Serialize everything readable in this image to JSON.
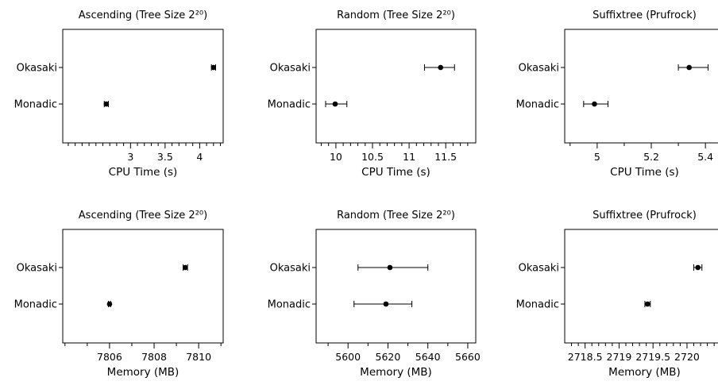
{
  "chart_data": [
    {
      "type": "scatter",
      "title": "Ascending (Tree Size 2²⁰)",
      "xlabel": "CPU Time (s)",
      "categories": [
        "Okasaki",
        "Monadic"
      ],
      "xlim": [
        2.02,
        4.34
      ],
      "major_ticks": [
        3,
        3.5,
        4
      ],
      "major_tick_labels": [
        "3",
        "3.5",
        "4"
      ],
      "minor_ticks": [
        2.1,
        2.2,
        2.3,
        2.4,
        2.5,
        2.6,
        2.7,
        2.8,
        2.9,
        3.1,
        3.2,
        3.3,
        3.4,
        3.6,
        3.7,
        3.8,
        3.9,
        4.1,
        4.2,
        4.3
      ],
      "points": [
        {
          "category": "Okasaki",
          "x": 4.2,
          "err_low": 4.17,
          "err_high": 4.23
        },
        {
          "category": "Monadic",
          "x": 2.65,
          "err_low": 2.62,
          "err_high": 2.68
        }
      ]
    },
    {
      "type": "scatter",
      "title": "Random (Tree Size 2²⁰)",
      "xlabel": "CPU Time (s)",
      "categories": [
        "Okasaki",
        "Monadic"
      ],
      "xlim": [
        9.73,
        11.91
      ],
      "major_ticks": [
        10,
        10.5,
        11,
        11.5
      ],
      "major_tick_labels": [
        "10",
        "10.5",
        "11",
        "11.5"
      ],
      "minor_ticks": [
        9.8,
        9.9,
        10.1,
        10.2,
        10.3,
        10.4,
        10.6,
        10.7,
        10.8,
        10.9,
        11.1,
        11.2,
        11.3,
        11.4,
        11.6,
        11.7,
        11.8
      ],
      "points": [
        {
          "category": "Okasaki",
          "x": 11.43,
          "err_low": 11.21,
          "err_high": 11.62
        },
        {
          "category": "Monadic",
          "x": 9.99,
          "err_low": 9.86,
          "err_high": 10.15
        }
      ]
    },
    {
      "type": "scatter",
      "title": "Suffixtree (Prufrock)",
      "xlabel": "CPU Time (s)",
      "categories": [
        "Okasaki",
        "Monadic"
      ],
      "xlim": [
        4.88,
        5.47
      ],
      "major_ticks": [
        5,
        5.2,
        5.4
      ],
      "major_tick_labels": [
        "5",
        "5.2",
        "5.4"
      ],
      "minor_ticks": [
        4.9,
        5.1,
        5.3
      ],
      "points": [
        {
          "category": "Okasaki",
          "x": 5.34,
          "err_low": 5.3,
          "err_high": 5.41
        },
        {
          "category": "Monadic",
          "x": 4.99,
          "err_low": 4.95,
          "err_high": 5.04
        }
      ]
    },
    {
      "type": "scatter",
      "title": "Ascending (Tree Size 2²⁰)",
      "xlabel": "Memory (MB)",
      "categories": [
        "Okasaki",
        "Monadic"
      ],
      "xlim": [
        7803.9,
        7811.1
      ],
      "major_ticks": [
        7806,
        7808,
        7810
      ],
      "major_tick_labels": [
        "7806",
        "7808",
        "7810"
      ],
      "minor_ticks": [
        7804,
        7805,
        7807,
        7809,
        7811
      ],
      "points": [
        {
          "category": "Okasaki",
          "x": 7809.4,
          "err_low": 7809.3,
          "err_high": 7809.5
        },
        {
          "category": "Monadic",
          "x": 7806.0,
          "err_low": 7805.95,
          "err_high": 7806.05
        }
      ]
    },
    {
      "type": "scatter",
      "title": "Random (Tree Size 2²⁰)",
      "xlabel": "Memory (MB)",
      "categories": [
        "Okasaki",
        "Monadic"
      ],
      "xlim": [
        5584,
        5664
      ],
      "major_ticks": [
        5600,
        5620,
        5640,
        5660
      ],
      "major_tick_labels": [
        "5600",
        "5620",
        "5640",
        "5660"
      ],
      "minor_ticks": [
        5590,
        5610,
        5630,
        5650
      ],
      "points": [
        {
          "category": "Okasaki",
          "x": 5621,
          "err_low": 5605,
          "err_high": 5640
        },
        {
          "category": "Monadic",
          "x": 5619,
          "err_low": 5603,
          "err_high": 5632
        }
      ]
    },
    {
      "type": "scatter",
      "title": "Suffixtree (Prufrock)",
      "xlabel": "Memory (MB)",
      "categories": [
        "Okasaki",
        "Monadic"
      ],
      "xlim": [
        2718.2,
        2720.55
      ],
      "major_ticks": [
        2718.5,
        2719,
        2719.5,
        2720
      ],
      "major_tick_labels": [
        "2718.5",
        "2719",
        "2719.5",
        "2720"
      ],
      "minor_ticks": [
        2718.3,
        2718.4,
        2718.6,
        2718.7,
        2718.8,
        2718.9,
        2719.1,
        2719.2,
        2719.3,
        2719.4,
        2719.6,
        2719.7,
        2719.8,
        2719.9,
        2720.1,
        2720.2,
        2720.3,
        2720.4,
        2720.5
      ],
      "points": [
        {
          "category": "Okasaki",
          "x": 2720.16,
          "err_low": 2720.1,
          "err_high": 2720.22
        },
        {
          "category": "Monadic",
          "x": 2719.42,
          "err_low": 2719.38,
          "err_high": 2719.46
        }
      ]
    }
  ]
}
